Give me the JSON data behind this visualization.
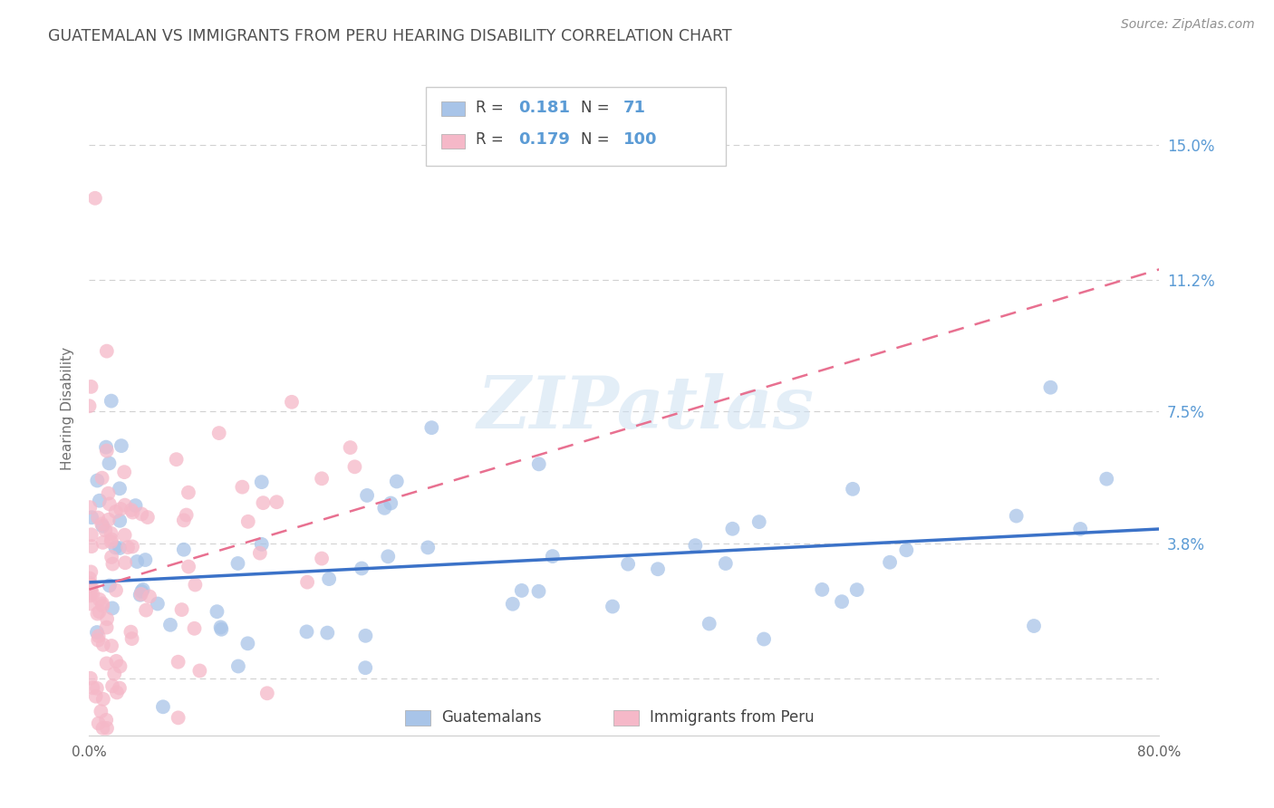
{
  "title": "GUATEMALAN VS IMMIGRANTS FROM PERU HEARING DISABILITY CORRELATION CHART",
  "source": "Source: ZipAtlas.com",
  "ylabel": "Hearing Disability",
  "yticks": [
    0.0,
    0.038,
    0.075,
    0.112,
    0.15
  ],
  "ytick_labels": [
    "",
    "3.8%",
    "7.5%",
    "11.2%",
    "15.0%"
  ],
  "xlim": [
    0.0,
    0.8
  ],
  "ylim": [
    -0.016,
    0.168
  ],
  "series1_label": "Guatemalans",
  "series1_marker_color": "#a8c4e8",
  "series1_line_color": "#3b72c8",
  "series1_R": 0.181,
  "series1_N": 71,
  "series2_label": "Immigrants from Peru",
  "series2_marker_color": "#f5b8c8",
  "series2_line_color": "#e87090",
  "series2_R": 0.179,
  "series2_N": 100,
  "watermark_text": "ZIPatlas",
  "background_color": "#ffffff",
  "grid_color": "#cccccc",
  "axis_label_color": "#5b9bd5",
  "title_color": "#505050",
  "source_color": "#909090",
  "blue_line_x": [
    0.0,
    0.8
  ],
  "blue_line_y": [
    0.027,
    0.042
  ],
  "pink_line_x": [
    0.0,
    0.8
  ],
  "pink_line_y": [
    0.025,
    0.115
  ]
}
